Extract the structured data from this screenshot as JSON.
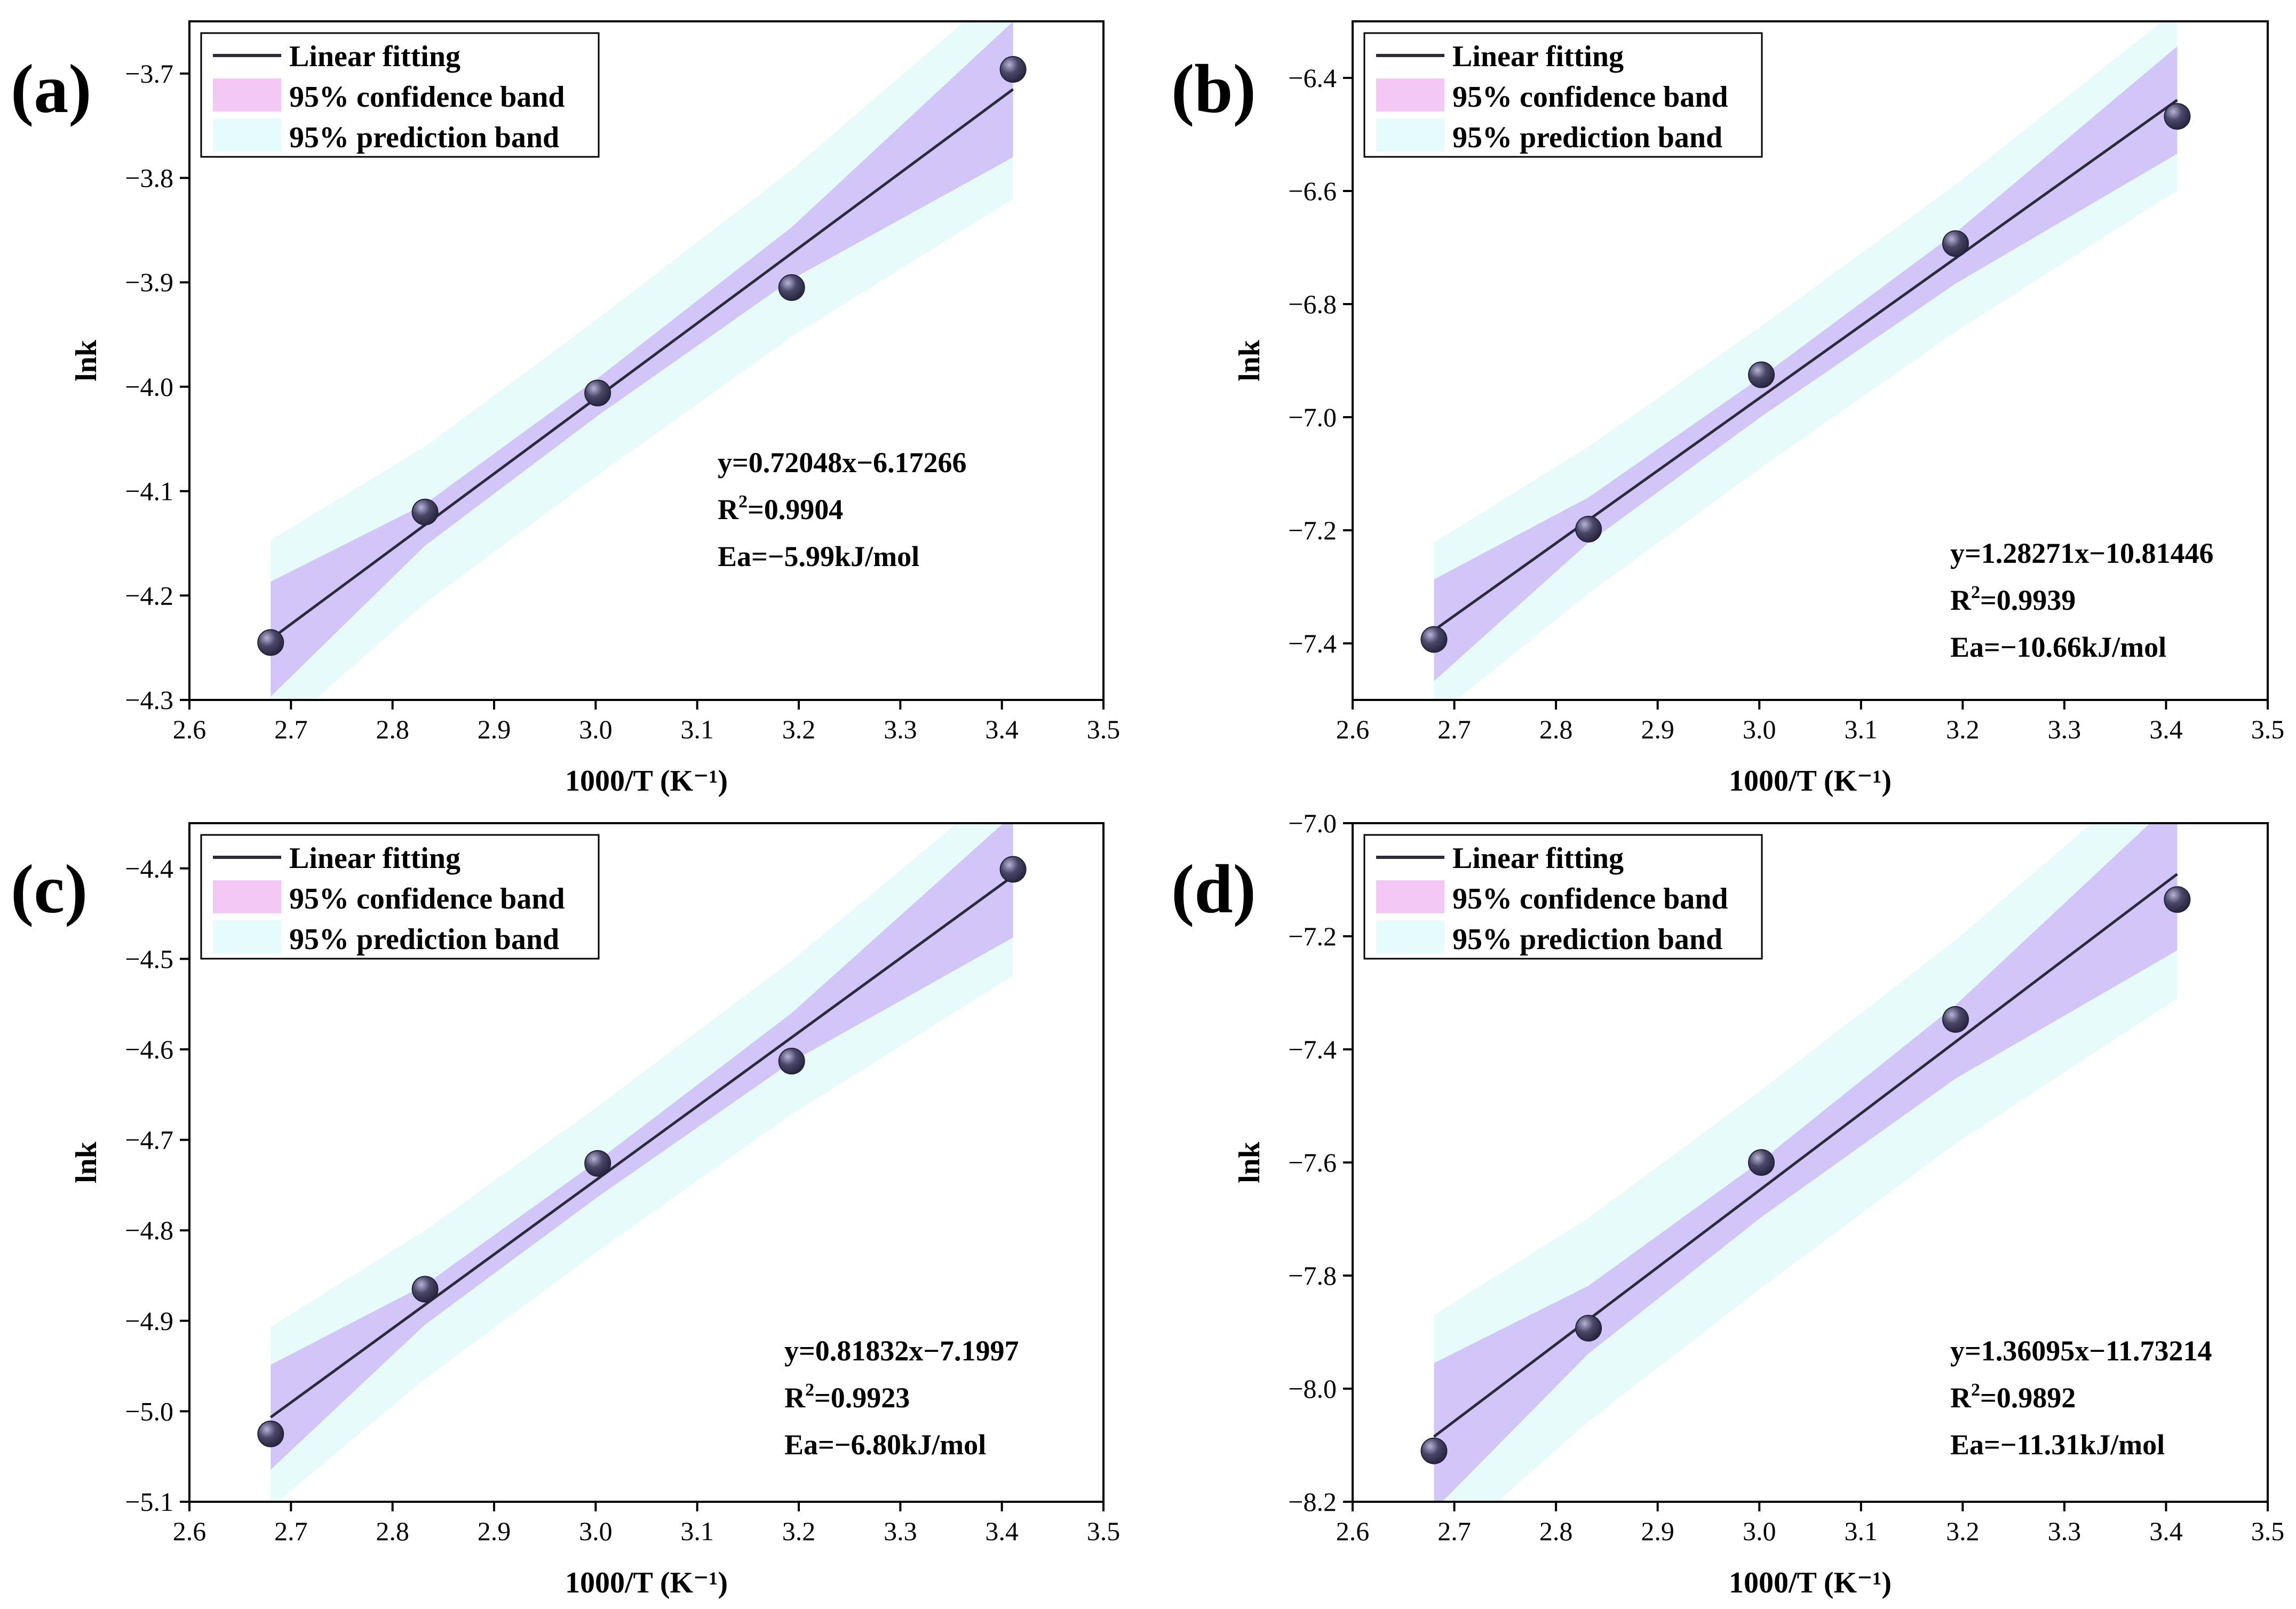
{
  "colors": {
    "prediction_band": "#e8fbfb",
    "confidence_band": "#d2c6f8",
    "fit_line": "#2a2a3a",
    "legend_confidence_swatch": "#f3c8f5",
    "legend_prediction_swatch": "#e6fbfb",
    "point_fill_light": "#b8b4d8",
    "point_fill_dark": "#23213a"
  },
  "chart_data": [
    {
      "type": "scatter",
      "panel_label": "(a)",
      "xlabel": "1000/T (K⁻¹)",
      "ylabel": "lnk",
      "xlim": [
        2.6,
        3.5
      ],
      "ylim": [
        -4.3,
        -3.65
      ],
      "xticks": [
        "2.6",
        "2.7",
        "2.8",
        "2.9",
        "3.0",
        "3.1",
        "3.2",
        "3.3",
        "3.4",
        "3.5"
      ],
      "yticks": [
        "-4.3",
        "-4.2",
        "-4.1",
        "-4.0",
        "-3.9",
        "-3.8",
        "-3.7"
      ],
      "x": [
        2.68,
        2.832,
        3.002,
        3.193,
        3.411
      ],
      "y": [
        -4.245,
        -4.12,
        -4.006,
        -3.905,
        -3.696
      ],
      "fit": {
        "slope": 0.72048,
        "intercept": -6.17266
      },
      "bands": {
        "confidence_halfwidth": [
          0.055,
          0.02,
          0.018,
          0.025,
          0.065
        ],
        "prediction_halfwidth": [
          0.095,
          0.075,
          0.075,
          0.08,
          0.105
        ]
      },
      "legend": [
        "Linear fitting",
        "95% confidence band",
        "95% prediction band"
      ],
      "annotation": {
        "equation": "y=0.72048x−6.17266",
        "r2_prefix": "R",
        "r2_value": "=0.9904",
        "ea": "Ea=−5.99kJ/mol"
      }
    },
    {
      "type": "scatter",
      "panel_label": "(b)",
      "xlabel": "1000/T (K⁻¹)",
      "ylabel": "lnk",
      "xlim": [
        2.6,
        3.5
      ],
      "ylim": [
        -7.5,
        -6.3
      ],
      "xticks": [
        "2.6",
        "2.7",
        "2.8",
        "2.9",
        "3.0",
        "3.1",
        "3.2",
        "3.3",
        "3.4",
        "3.5"
      ],
      "yticks": [
        "-7.4",
        "-7.2",
        "-7.0",
        "-6.8",
        "-6.6",
        "-6.4"
      ],
      "x": [
        2.68,
        2.832,
        3.002,
        3.193,
        3.411
      ],
      "y": [
        -7.393,
        -7.198,
        -6.925,
        -6.693,
        -6.468
      ],
      "fit": {
        "slope": 1.28271,
        "intercept": -10.81446
      },
      "bands": {
        "confidence_halfwidth": [
          0.09,
          0.04,
          0.035,
          0.045,
          0.095
        ],
        "prediction_halfwidth": [
          0.155,
          0.13,
          0.125,
          0.13,
          0.16
        ]
      },
      "legend": [
        "Linear fitting",
        "95% confidence band",
        "95% prediction band"
      ],
      "annotation": {
        "equation": "y=1.28271x−10.81446",
        "r2_prefix": "R",
        "r2_value": "=0.9939",
        "ea": "Ea=−10.66kJ/mol"
      }
    },
    {
      "type": "scatter",
      "panel_label": "(c)",
      "xlabel": "1000/T (K⁻¹)",
      "ylabel": "lnk",
      "xlim": [
        2.6,
        3.5
      ],
      "ylim": [
        -5.1,
        -4.35
      ],
      "xticks": [
        "2.6",
        "2.7",
        "2.8",
        "2.9",
        "3.0",
        "3.1",
        "3.2",
        "3.3",
        "3.4",
        "3.5"
      ],
      "yticks": [
        "-5.1",
        "-5.0",
        "-4.9",
        "-4.8",
        "-4.7",
        "-4.6",
        "-4.5",
        "-4.4"
      ],
      "x": [
        2.68,
        2.832,
        3.002,
        3.193,
        3.411
      ],
      "y": [
        -5.025,
        -4.865,
        -4.726,
        -4.613,
        -4.401
      ],
      "fit": {
        "slope": 0.81832,
        "intercept": -7.1997
      },
      "bands": {
        "confidence_halfwidth": [
          0.058,
          0.022,
          0.02,
          0.027,
          0.068
        ],
        "prediction_halfwidth": [
          0.1,
          0.082,
          0.08,
          0.085,
          0.11
        ]
      },
      "legend": [
        "Linear fitting",
        "95% confidence band",
        "95% prediction band"
      ],
      "annotation": {
        "equation": "y=0.81832x−7.1997",
        "r2_prefix": "R",
        "r2_value": "=0.9923",
        "ea": "Ea=−6.80kJ/mol"
      }
    },
    {
      "type": "scatter",
      "panel_label": "(d)",
      "xlabel": "1000/T (K⁻¹)",
      "ylabel": "lnk",
      "xlim": [
        2.6,
        3.5
      ],
      "ylim": [
        -8.2,
        -7.0
      ],
      "xticks": [
        "2.6",
        "2.7",
        "2.8",
        "2.9",
        "3.0",
        "3.1",
        "3.2",
        "3.3",
        "3.4",
        "3.5"
      ],
      "yticks": [
        "-8.2",
        "-8.0",
        "-7.8",
        "-7.6",
        "-7.4",
        "-7.2",
        "-7.0"
      ],
      "x": [
        2.68,
        2.832,
        3.002,
        3.193,
        3.411
      ],
      "y": [
        -8.11,
        -7.893,
        -7.6,
        -7.347,
        -7.135
      ],
      "fit": {
        "slope": 1.36095,
        "intercept": -11.73214
      },
      "bands": {
        "confidence_halfwidth": [
          0.13,
          0.06,
          0.05,
          0.065,
          0.135
        ],
        "prediction_halfwidth": [
          0.215,
          0.18,
          0.175,
          0.18,
          0.22
        ]
      },
      "legend": [
        "Linear fitting",
        "95% confidence band",
        "95% prediction band"
      ],
      "annotation": {
        "equation": "y=1.36095x−11.73214",
        "r2_prefix": "R",
        "r2_value": "=0.9892",
        "ea": "Ea=−11.31kJ/mol"
      }
    }
  ]
}
